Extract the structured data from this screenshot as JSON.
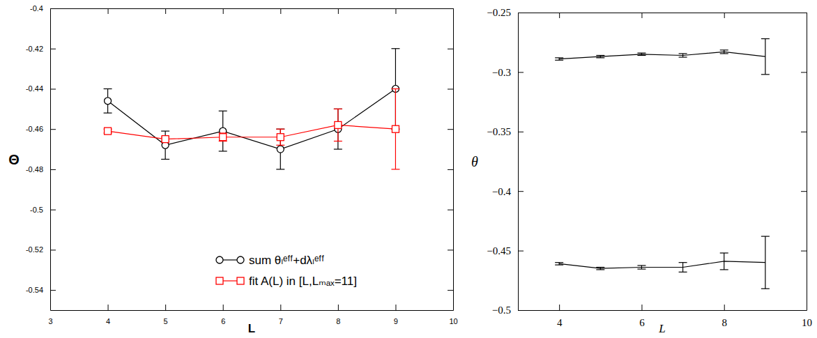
{
  "chart_data": [
    {
      "type": "line",
      "x_label": "L",
      "y_label": "Θ",
      "xlim": [
        3,
        10
      ],
      "xticks": [
        3,
        4,
        5,
        6,
        7,
        8,
        9,
        10
      ],
      "ylim": [
        -0.55,
        -0.4
      ],
      "yticks": [
        -0.54,
        -0.52,
        -0.5,
        -0.48,
        -0.46,
        -0.44,
        -0.42,
        -0.4
      ],
      "legend": "lower right",
      "x": [
        4,
        5,
        6,
        7,
        8,
        9
      ],
      "series": [
        {
          "name": "sum θₗᵉᶠᶠ+dλₗᵉᶠᶠ",
          "color": "#000000",
          "marker": "circle",
          "values": [
            -0.446,
            -0.468,
            -0.461,
            -0.47,
            -0.46,
            -0.44
          ],
          "errors": [
            0.006,
            0.007,
            0.01,
            0.01,
            0.01,
            0.02
          ]
        },
        {
          "name": "fit A(L) in [L,Lₘₐₓ=11]",
          "color": "#ff0000",
          "marker": "square",
          "values": [
            -0.461,
            -0.465,
            -0.464,
            -0.464,
            -0.458,
            -0.46
          ],
          "errors": [
            0.001,
            0.001,
            0.002,
            0.004,
            0.008,
            0.02
          ]
        }
      ]
    },
    {
      "type": "line",
      "x_label": "L",
      "y_label": "θ",
      "xlim": [
        3,
        10
      ],
      "xticks": [
        4,
        6,
        8,
        10
      ],
      "ylim": [
        -0.5,
        -0.25
      ],
      "yticks": [
        {
          "value": -0.5,
          "label": "−0.5"
        },
        {
          "value": -0.45,
          "label": "−0.45"
        },
        {
          "value": -0.4,
          "label": "−0.4"
        },
        {
          "value": -0.35,
          "label": "−0.35"
        },
        {
          "value": -0.3,
          "label": "−0.3"
        },
        {
          "value": -0.25,
          "label": "−0.25"
        }
      ],
      "x": [
        4,
        5,
        6,
        7,
        8,
        9
      ],
      "series": [
        {
          "color": "#000000",
          "values": [
            -0.289,
            -0.287,
            -0.285,
            -0.286,
            -0.283,
            -0.287
          ],
          "errors": [
            0.001,
            0.001,
            0.001,
            0.0015,
            0.0015,
            0.015
          ]
        },
        {
          "color": "#000000",
          "values": [
            -0.461,
            -0.465,
            -0.464,
            -0.464,
            -0.459,
            -0.46
          ],
          "errors": [
            0.001,
            0.001,
            0.0015,
            0.004,
            0.007,
            0.022
          ]
        }
      ]
    }
  ]
}
